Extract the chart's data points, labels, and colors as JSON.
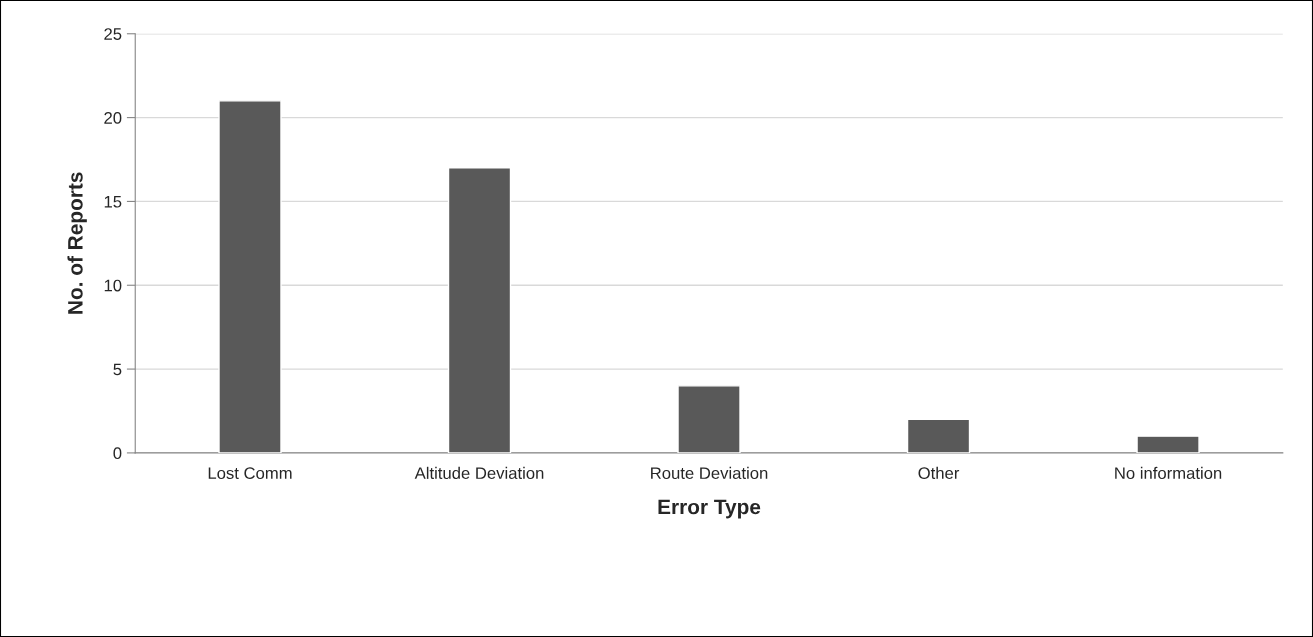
{
  "chart_data": {
    "type": "bar",
    "xlabel": "Error Type",
    "ylabel": "No. of Reports",
    "categories": [
      "Lost Comm",
      "Altitude Deviation",
      "Route Deviation",
      "Other",
      "No information"
    ],
    "values": [
      21,
      17,
      4,
      2,
      1
    ],
    "color": "#595959",
    "ylim": [
      0,
      25
    ],
    "yticks": [
      0,
      5,
      10,
      15,
      20,
      25
    ],
    "grid": "y",
    "legend": false
  }
}
